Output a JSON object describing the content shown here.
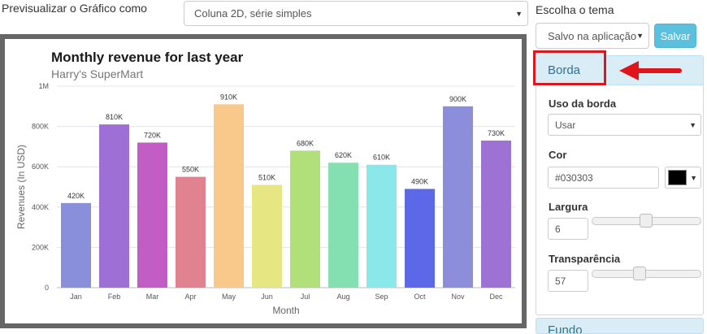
{
  "controls": {
    "preview_label": "Previsualizar o Gráfico como",
    "chart_type_value": "Coluna 2D, série simples",
    "theme_label": "Escolha o tema",
    "theme_value": "Salvo na aplicação",
    "save_label": "Salvar"
  },
  "panel": {
    "active_section": "Borda",
    "border_usage_label": "Uso da borda",
    "border_usage_value": "Usar",
    "color_label": "Cor",
    "color_value": "#030303",
    "color_swatch": "#000000",
    "width_label": "Largura",
    "width_value": "6",
    "transparency_label": "Transparência",
    "transparency_value": "57",
    "next_section": "Fundo"
  },
  "chart_data": {
    "type": "bar",
    "title": "Monthly revenue for last year",
    "subtitle": "Harry's SuperMart",
    "xlabel": "Month",
    "ylabel": "Revenues (In USD)",
    "ylim": [
      0,
      1000000
    ],
    "yticks": [
      "0",
      "200K",
      "400K",
      "600K",
      "800K",
      "1M"
    ],
    "categories": [
      "Jan",
      "Feb",
      "Mar",
      "Apr",
      "May",
      "Jun",
      "Jul",
      "Aug",
      "Sep",
      "Oct",
      "Nov",
      "Dec"
    ],
    "values": [
      420000,
      810000,
      720000,
      550000,
      910000,
      510000,
      680000,
      620000,
      610000,
      490000,
      900000,
      730000
    ],
    "value_labels": [
      "420K",
      "810K",
      "720K",
      "550K",
      "910K",
      "510K",
      "680K",
      "620K",
      "610K",
      "490K",
      "900K",
      "730K"
    ],
    "colors": [
      "#8a8fdc",
      "#9e6fd4",
      "#c35dc6",
      "#e0828f",
      "#f8c98a",
      "#e6e683",
      "#b1df7a",
      "#84e0b1",
      "#8ae8ea",
      "#5b69e8",
      "#8d8edb",
      "#9e72d4"
    ],
    "grid": true
  },
  "annotation": {
    "highlight_color": "#e2141b"
  }
}
